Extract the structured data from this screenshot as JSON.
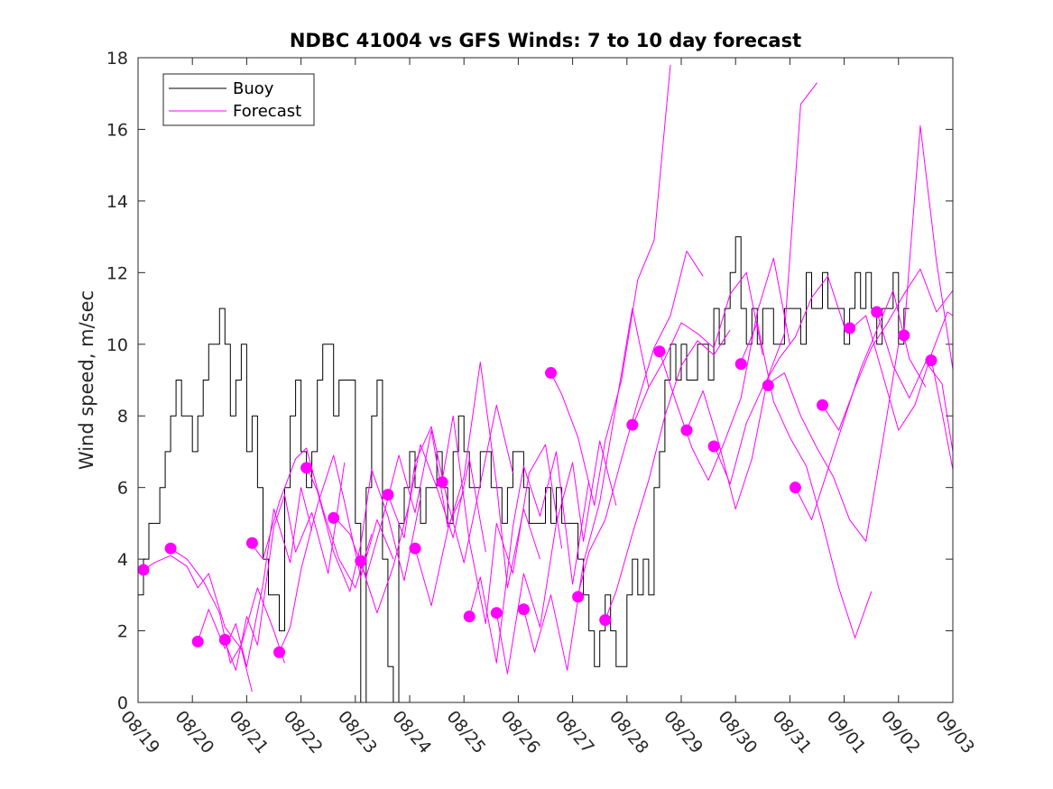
{
  "chart_data": {
    "type": "line",
    "title": "NDBC 41004 vs GFS Winds: 7 to 10 day forecast",
    "xlabel": "",
    "ylabel": "Wind speed, m/sec",
    "xlim": [
      0,
      15
    ],
    "ylim": [
      0,
      18
    ],
    "x_tick_labels": [
      "08/19",
      "08/20",
      "08/21",
      "08/22",
      "08/23",
      "08/24",
      "08/25",
      "08/26",
      "08/27",
      "08/28",
      "08/29",
      "08/30",
      "08/31",
      "09/01",
      "09/02",
      "09/03"
    ],
    "y_ticks": [
      0,
      2,
      4,
      6,
      8,
      10,
      12,
      14,
      16,
      18
    ],
    "legend": {
      "placement": "top-left",
      "entries": [
        "Buoy",
        "Forecast"
      ]
    },
    "colors": {
      "buoy": "#000000",
      "forecast": "#ff00ff"
    },
    "series": [
      {
        "name": "Buoy",
        "x": [
          0.0,
          0.1,
          0.2,
          0.3,
          0.4,
          0.5,
          0.6,
          0.7,
          0.8,
          0.9,
          1.0,
          1.1,
          1.2,
          1.3,
          1.4,
          1.5,
          1.6,
          1.7,
          1.8,
          1.9,
          2.0,
          2.1,
          2.2,
          2.3,
          2.4,
          2.5,
          2.6,
          2.7,
          2.8,
          2.9,
          3.0,
          3.1,
          3.2,
          3.3,
          3.4,
          3.5,
          3.6,
          3.7,
          3.8,
          3.9,
          4.0,
          4.1,
          4.2,
          4.3,
          4.4,
          4.5,
          4.6,
          4.7,
          4.8,
          4.9,
          5.0,
          5.1,
          5.2,
          5.3,
          5.4,
          5.5,
          5.6,
          5.7,
          5.8,
          5.9,
          6.0,
          6.1,
          6.2,
          6.3,
          6.4,
          6.5,
          6.6,
          6.7,
          6.8,
          6.9,
          7.0,
          7.1,
          7.2,
          7.3,
          7.4,
          7.5,
          7.6,
          7.7,
          7.8,
          7.9,
          8.0,
          8.1,
          8.2,
          8.3,
          8.4,
          8.5,
          8.6,
          8.7,
          8.8,
          8.9,
          9.0,
          9.1,
          9.2,
          9.3,
          9.4,
          9.5,
          9.6,
          9.7,
          9.8,
          9.9,
          10.0,
          10.1,
          10.2,
          10.3,
          10.4,
          10.5,
          10.6,
          10.7,
          10.8,
          10.9,
          11.0,
          11.1,
          11.2,
          11.3,
          11.4,
          11.5,
          11.6,
          11.7,
          11.8,
          11.9,
          12.0,
          12.1,
          12.2,
          12.3,
          12.4,
          12.5,
          12.6,
          12.7,
          12.8,
          12.9,
          13.0,
          13.1,
          13.2,
          13.3,
          13.4,
          13.5,
          13.6,
          13.7,
          13.8,
          13.9,
          14.0,
          14.1,
          14.2
        ],
        "values": [
          3,
          4,
          5,
          5,
          6,
          7,
          8,
          9,
          8,
          8,
          7,
          8,
          9,
          10,
          10,
          11,
          10,
          8,
          9,
          10,
          7,
          8,
          6,
          4,
          3,
          3,
          2,
          6,
          8,
          9,
          7,
          6,
          7,
          9,
          10,
          10,
          8,
          9,
          9,
          9,
          5,
          0,
          6,
          8,
          9,
          4,
          1,
          0,
          5,
          6,
          7,
          6,
          5,
          6,
          6,
          7,
          6,
          5,
          7,
          8,
          7,
          6,
          6,
          7,
          7,
          6,
          6,
          5,
          6,
          7,
          7,
          6,
          5,
          5,
          5,
          6,
          5,
          6,
          5,
          5,
          5,
          4,
          3,
          2,
          1,
          2,
          3,
          2,
          1,
          1,
          3,
          4,
          3,
          4,
          3,
          6,
          7,
          9,
          10,
          9,
          10,
          9,
          9,
          10,
          10,
          9,
          11,
          10,
          11,
          12,
          13,
          11,
          10,
          11,
          10,
          11,
          11,
          10,
          10,
          11,
          11,
          11,
          10,
          12,
          11,
          11,
          12,
          11,
          11,
          11,
          10,
          11,
          12,
          11,
          12,
          11,
          10,
          11,
          11,
          12,
          10,
          11,
          11
        ]
      },
      {
        "name": "Forecast",
        "x": [
          0.1,
          0.3,
          0.6,
          0.9,
          1.1,
          1.3,
          1.6,
          1.9,
          2.1
        ],
        "values": [
          3.7,
          3.9,
          4.1,
          3.8,
          3.2,
          3.6,
          2.1,
          1.5,
          0.3
        ]
      },
      {
        "name": "Forecast",
        "x": [
          0.6,
          0.9,
          1.2,
          1.5,
          1.7,
          1.9,
          2.2,
          2.5,
          2.7
        ],
        "values": [
          4.3,
          4.0,
          3.4,
          2.5,
          1.1,
          1.6,
          3.2,
          2.0,
          1.1
        ]
      },
      {
        "name": "Forecast",
        "x": [
          1.1,
          1.3,
          1.6,
          1.8,
          2.0,
          2.3,
          2.5,
          2.8,
          3.0,
          3.2
        ],
        "values": [
          1.7,
          2.6,
          1.5,
          2.2,
          1.0,
          3.3,
          5.4,
          3.9,
          6.0,
          4.8
        ]
      },
      {
        "name": "Forecast",
        "x": [
          1.6,
          1.8,
          2.0,
          2.2,
          2.5,
          2.7,
          2.9,
          3.2,
          3.5,
          3.8
        ],
        "values": [
          1.7,
          0.9,
          2.4,
          1.6,
          4.9,
          5.8,
          4.2,
          5.3,
          3.6,
          6.7
        ]
      },
      {
        "name": "Forecast",
        "x": [
          2.1,
          2.3,
          2.6,
          2.9,
          3.1,
          3.4,
          3.7,
          4.0,
          4.3
        ],
        "values": [
          4.4,
          4.0,
          5.6,
          6.8,
          7.1,
          5.4,
          4.0,
          3.2,
          4.7
        ]
      },
      {
        "name": "Forecast",
        "x": [
          2.6,
          2.8,
          3.0,
          3.3,
          3.6,
          3.8,
          4.1,
          4.4,
          4.7
        ],
        "values": [
          1.4,
          2.1,
          3.7,
          5.5,
          6.9,
          5.6,
          3.5,
          5.1,
          4.0
        ]
      },
      {
        "name": "Forecast",
        "x": [
          3.1,
          3.3,
          3.6,
          3.9,
          4.1,
          4.3,
          4.6,
          4.9,
          5.2
        ],
        "values": [
          6.6,
          5.9,
          4.2,
          3.1,
          4.4,
          6.5,
          5.2,
          3.4,
          5.7
        ]
      },
      {
        "name": "Forecast",
        "x": [
          3.6,
          3.9,
          4.2,
          4.5,
          4.8,
          5.1,
          5.4,
          5.7,
          6.0
        ],
        "values": [
          5.2,
          4.7,
          3.5,
          5.1,
          6.9,
          5.3,
          7.6,
          4.9,
          5.9
        ]
      },
      {
        "name": "Forecast",
        "x": [
          4.1,
          4.4,
          4.7,
          5.0,
          5.2,
          5.5,
          5.8,
          6.1,
          6.4
        ],
        "values": [
          3.9,
          2.5,
          3.8,
          5.6,
          7.2,
          6.0,
          4.6,
          6.8,
          4.2
        ]
      },
      {
        "name": "Forecast",
        "x": [
          4.6,
          4.9,
          5.1,
          5.4,
          5.7,
          6.0,
          6.3,
          6.6,
          6.9
        ],
        "values": [
          5.8,
          4.6,
          6.7,
          7.7,
          5.6,
          3.9,
          6.1,
          8.3,
          6.4
        ]
      },
      {
        "name": "Forecast",
        "x": [
          5.1,
          5.4,
          5.7,
          6.0,
          6.3,
          6.6,
          6.8,
          7.1,
          7.4
        ],
        "values": [
          4.3,
          2.7,
          4.8,
          6.3,
          9.5,
          6.1,
          3.2,
          5.4,
          4.0
        ]
      },
      {
        "name": "Forecast",
        "x": [
          5.6,
          5.8,
          6.1,
          6.4,
          6.6,
          6.9,
          7.2,
          7.5,
          7.8
        ],
        "values": [
          6.2,
          8.0,
          4.5,
          2.2,
          5.0,
          3.6,
          6.4,
          7.2,
          4.3
        ]
      },
      {
        "name": "Forecast",
        "x": [
          6.1,
          6.3,
          6.6,
          6.9,
          7.1,
          7.4,
          7.7,
          8.0,
          8.3
        ],
        "values": [
          2.4,
          3.5,
          1.1,
          4.9,
          6.6,
          5.2,
          7.0,
          3.3,
          6.2
        ]
      },
      {
        "name": "Forecast",
        "x": [
          6.6,
          6.8,
          7.1,
          7.4,
          7.7,
          8.0,
          8.2,
          8.5,
          8.8
        ],
        "values": [
          2.5,
          0.8,
          3.6,
          2.1,
          5.0,
          6.7,
          4.5,
          7.3,
          5.5
        ]
      },
      {
        "name": "Forecast",
        "x": [
          7.1,
          7.3,
          7.6,
          7.9,
          8.2,
          8.5,
          8.8,
          9.1,
          9.4
        ],
        "values": [
          2.6,
          1.4,
          3.0,
          0.9,
          3.9,
          5.6,
          8.3,
          11.0,
          8.8
        ]
      },
      {
        "name": "Forecast",
        "x": [
          7.6,
          7.8,
          8.1,
          8.4,
          8.6,
          8.9,
          9.2,
          9.5,
          9.8,
          10.0,
          10.2
        ],
        "values": [
          9.2,
          8.6,
          7.4,
          5.5,
          7.3,
          9.0,
          11.8,
          12.9,
          17.8,
          null,
          null
        ]
      },
      {
        "name": "Forecast",
        "x": [
          8.1,
          8.3,
          8.6,
          8.9,
          9.2,
          9.5,
          9.8,
          10.1,
          10.4
        ],
        "values": [
          3.0,
          4.2,
          5.1,
          6.8,
          8.4,
          9.9,
          10.8,
          12.6,
          11.9
        ]
      },
      {
        "name": "Forecast",
        "x": [
          8.6,
          8.8,
          9.1,
          9.4,
          9.7,
          10.0,
          10.3,
          10.6,
          10.9
        ],
        "values": [
          2.3,
          3.1,
          4.7,
          6.2,
          8.0,
          9.4,
          10.1,
          9.7,
          10.4
        ]
      },
      {
        "name": "Forecast",
        "x": [
          9.1,
          9.4,
          9.7,
          10.0,
          10.3,
          10.6,
          10.9,
          11.2,
          11.5
        ],
        "values": [
          7.7,
          8.8,
          9.6,
          10.6,
          10.3,
          9.9,
          11.4,
          12.0,
          9.7
        ]
      },
      {
        "name": "Forecast",
        "x": [
          9.6,
          9.9,
          10.2,
          10.5,
          10.8,
          11.1,
          11.4,
          11.7,
          12.0
        ],
        "values": [
          9.8,
          8.4,
          7.1,
          6.2,
          7.3,
          8.5,
          10.9,
          12.4,
          10.0
        ]
      },
      {
        "name": "Forecast",
        "x": [
          10.1,
          10.4,
          10.7,
          11.0,
          11.3,
          11.6,
          11.9,
          12.2,
          12.5
        ],
        "values": [
          7.6,
          8.7,
          7.2,
          5.4,
          6.8,
          9.1,
          10.3,
          16.7,
          17.3
        ]
      },
      {
        "name": "Forecast",
        "x": [
          10.6,
          10.9,
          11.2,
          11.5,
          11.8,
          12.1,
          12.4,
          12.7,
          13.0
        ],
        "values": [
          7.2,
          6.1,
          7.8,
          8.8,
          9.6,
          10.2,
          11.3,
          11.9,
          10.5
        ]
      },
      {
        "name": "Forecast",
        "x": [
          11.1,
          11.4,
          11.7,
          12.0,
          12.3,
          12.6,
          12.9,
          13.2,
          13.5
        ],
        "values": [
          9.5,
          10.6,
          8.4,
          7.4,
          6.6,
          5.0,
          3.2,
          1.8,
          3.1
        ]
      },
      {
        "name": "Forecast",
        "x": [
          11.6,
          11.9,
          12.2,
          12.5,
          12.8,
          13.1,
          13.4,
          13.7,
          14.0
        ],
        "values": [
          8.9,
          9.2,
          8.0,
          7.1,
          6.3,
          5.1,
          4.5,
          7.2,
          10.0
        ]
      },
      {
        "name": "Forecast",
        "x": [
          12.1,
          12.4,
          12.7,
          13.0,
          13.3,
          13.6,
          13.9,
          14.2,
          14.5
        ],
        "values": [
          6.0,
          5.1,
          6.5,
          7.9,
          9.3,
          10.4,
          11.5,
          9.6,
          8.8
        ]
      },
      {
        "name": "Forecast",
        "x": [
          12.6,
          12.9,
          13.2,
          13.5,
          13.8,
          14.1,
          14.4,
          14.7,
          15.0
        ],
        "values": [
          8.3,
          7.6,
          8.8,
          9.9,
          10.6,
          11.4,
          12.1,
          10.9,
          11.5
        ]
      },
      {
        "name": "Forecast",
        "x": [
          13.1,
          13.4,
          13.7,
          14.0,
          14.3,
          14.6,
          14.9,
          15.0
        ],
        "values": [
          10.4,
          10.8,
          9.2,
          7.6,
          8.3,
          9.7,
          10.9,
          10.8
        ]
      },
      {
        "name": "Forecast",
        "x": [
          13.6,
          13.9,
          14.2,
          14.5,
          14.8,
          15.0
        ],
        "values": [
          10.9,
          9.4,
          8.5,
          9.5,
          8.9,
          7.0
        ]
      },
      {
        "name": "Forecast",
        "x": [
          14.1,
          14.4,
          14.7,
          15.0
        ],
        "values": [
          10.3,
          16.1,
          12.3,
          9.3
        ]
      },
      {
        "name": "Forecast",
        "x": [
          14.6,
          14.8,
          15.0
        ],
        "values": [
          9.6,
          8.1,
          6.5
        ]
      }
    ],
    "forecast_start_points": {
      "x": [
        0.1,
        0.6,
        1.1,
        1.6,
        2.1,
        2.6,
        3.1,
        3.6,
        4.1,
        4.6,
        5.1,
        5.6,
        6.1,
        6.6,
        7.1,
        7.6,
        8.1,
        8.6,
        9.1,
        9.6,
        10.1,
        10.6,
        11.1,
        11.6,
        12.1,
        12.6,
        13.1,
        13.6,
        14.1,
        14.6
      ],
      "values": [
        3.7,
        4.3,
        1.7,
        1.75,
        4.45,
        1.4,
        6.55,
        5.15,
        3.95,
        5.8,
        4.3,
        6.15,
        2.4,
        2.5,
        2.6,
        9.2,
        2.95,
        2.3,
        7.75,
        9.8,
        7.6,
        7.15,
        9.45,
        8.85,
        6.0,
        8.3,
        10.45,
        10.9,
        10.25,
        9.55
      ]
    }
  }
}
